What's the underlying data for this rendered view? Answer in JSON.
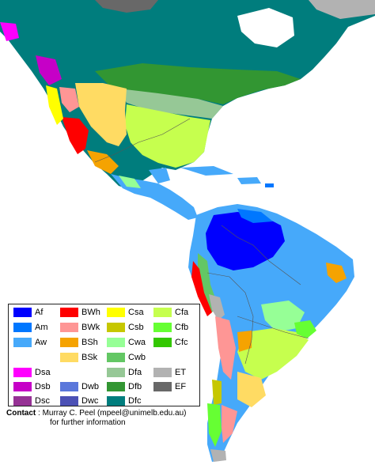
{
  "legend": {
    "items": [
      {
        "code": "Af",
        "color": "#0000fe"
      },
      {
        "code": "Am",
        "color": "#0077ff"
      },
      {
        "code": "Aw",
        "color": "#46a9fa"
      },
      {
        "code": "BWh",
        "color": "#fe0000"
      },
      {
        "code": "BWk",
        "color": "#fe9695"
      },
      {
        "code": "BSh",
        "color": "#f5a301"
      },
      {
        "code": "BSk",
        "color": "#ffdb63"
      },
      {
        "code": "Csa",
        "color": "#ffff00"
      },
      {
        "code": "Csb",
        "color": "#c6c700"
      },
      {
        "code": "Cwa",
        "color": "#96ff96"
      },
      {
        "code": "Cwb",
        "color": "#63c764"
      },
      {
        "code": "Cfa",
        "color": "#c6ff4e"
      },
      {
        "code": "Cfb",
        "color": "#66ff33"
      },
      {
        "code": "Cfc",
        "color": "#33c701"
      },
      {
        "code": "Dsa",
        "color": "#ff00fe"
      },
      {
        "code": "Dsb",
        "color": "#c600c7"
      },
      {
        "code": "Dsc",
        "color": "#963295"
      },
      {
        "code": "Dwb",
        "color": "#5a77db"
      },
      {
        "code": "Dwc",
        "color": "#4c51b5"
      },
      {
        "code": "Dfa",
        "color": "#96c896"
      },
      {
        "code": "Dfb",
        "color": "#329632"
      },
      {
        "code": "Dfc",
        "color": "#007d7d"
      },
      {
        "code": "ET",
        "color": "#b2b2b2"
      },
      {
        "code": "EF",
        "color": "#686868"
      }
    ]
  },
  "contact": {
    "label": "Contact",
    "line1": " : Murray C. Peel (mpeel@unimelb.edu.au)",
    "line2": "for further information"
  }
}
